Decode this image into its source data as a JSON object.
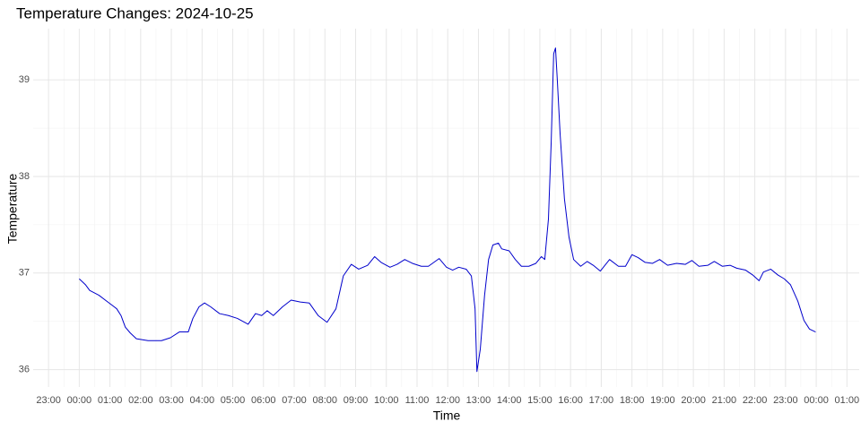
{
  "chart_data": {
    "type": "line",
    "title": "Temperature Changes: 2024-10-25",
    "x_label": "Time",
    "y_label": "Temperature",
    "x": [
      0.0,
      0.2,
      0.34,
      0.64,
      0.93,
      1.22,
      1.36,
      1.5,
      1.66,
      1.86,
      2.24,
      2.68,
      2.97,
      3.26,
      3.55,
      3.7,
      3.9,
      4.08,
      4.28,
      4.57,
      4.86,
      5.15,
      5.5,
      5.74,
      5.94,
      6.12,
      6.32,
      6.62,
      6.9,
      7.2,
      7.49,
      7.78,
      8.07,
      8.36,
      8.6,
      8.86,
      9.1,
      9.39,
      9.62,
      9.83,
      10.12,
      10.35,
      10.6,
      10.85,
      11.14,
      11.37,
      11.72,
      11.96,
      12.16,
      12.36,
      12.6,
      12.77,
      12.89,
      12.95,
      13.06,
      13.2,
      13.33,
      13.47,
      13.65,
      13.76,
      14.0,
      14.2,
      14.4,
      14.64,
      14.87,
      15.05,
      15.16,
      15.28,
      15.37,
      15.45,
      15.51,
      15.57,
      15.66,
      15.8,
      15.95,
      16.1,
      16.33,
      16.54,
      16.74,
      16.97,
      17.27,
      17.56,
      17.79,
      18.0,
      18.2,
      18.43,
      18.67,
      18.9,
      19.16,
      19.45,
      19.74,
      19.95,
      20.18,
      20.47,
      20.68,
      20.94,
      21.2,
      21.41,
      21.7,
      21.93,
      22.14,
      22.28,
      22.52,
      22.75,
      22.96,
      23.16,
      23.4,
      23.6,
      23.78,
      23.98
    ],
    "series": [
      {
        "name": "Temperature",
        "color": "#0000cc",
        "values": [
          36.94,
          36.88,
          36.82,
          36.77,
          36.7,
          36.63,
          36.56,
          36.44,
          36.38,
          36.32,
          36.3,
          36.3,
          36.33,
          36.39,
          36.39,
          36.53,
          36.65,
          36.69,
          36.65,
          36.58,
          36.56,
          36.53,
          36.47,
          36.58,
          36.56,
          36.61,
          36.56,
          36.65,
          36.72,
          36.7,
          36.69,
          36.56,
          36.49,
          36.63,
          36.97,
          37.09,
          37.04,
          37.08,
          37.17,
          37.11,
          37.06,
          37.09,
          37.14,
          37.1,
          37.07,
          37.07,
          37.15,
          37.06,
          37.03,
          37.06,
          37.04,
          36.97,
          36.63,
          35.98,
          36.21,
          36.77,
          37.14,
          37.29,
          37.31,
          37.25,
          37.23,
          37.14,
          37.07,
          37.07,
          37.1,
          37.17,
          37.14,
          37.56,
          38.36,
          39.27,
          39.33,
          38.99,
          38.44,
          37.77,
          37.37,
          37.14,
          37.07,
          37.12,
          37.08,
          37.02,
          37.14,
          37.07,
          37.07,
          37.19,
          37.16,
          37.11,
          37.1,
          37.14,
          37.08,
          37.1,
          37.09,
          37.13,
          37.07,
          37.08,
          37.12,
          37.07,
          37.08,
          37.05,
          37.03,
          36.98,
          36.92,
          37.01,
          37.04,
          36.98,
          36.94,
          36.88,
          36.71,
          36.51,
          36.42,
          36.39
        ]
      }
    ],
    "xlim": [
      -1.5,
      25.4
    ],
    "xticks": [
      {
        "value": -1,
        "label": "23:00"
      },
      {
        "value": 0,
        "label": "00:00"
      },
      {
        "value": 1,
        "label": "01:00"
      },
      {
        "value": 2,
        "label": "02:00"
      },
      {
        "value": 3,
        "label": "03:00"
      },
      {
        "value": 4,
        "label": "04:00"
      },
      {
        "value": 5,
        "label": "05:00"
      },
      {
        "value": 6,
        "label": "06:00"
      },
      {
        "value": 7,
        "label": "07:00"
      },
      {
        "value": 8,
        "label": "08:00"
      },
      {
        "value": 9,
        "label": "09:00"
      },
      {
        "value": 10,
        "label": "10:00"
      },
      {
        "value": 11,
        "label": "11:00"
      },
      {
        "value": 12,
        "label": "12:00"
      },
      {
        "value": 13,
        "label": "13:00"
      },
      {
        "value": 14,
        "label": "14:00"
      },
      {
        "value": 15,
        "label": "15:00"
      },
      {
        "value": 16,
        "label": "16:00"
      },
      {
        "value": 17,
        "label": "17:00"
      },
      {
        "value": 18,
        "label": "18:00"
      },
      {
        "value": 19,
        "label": "19:00"
      },
      {
        "value": 20,
        "label": "20:00"
      },
      {
        "value": 21,
        "label": "21:00"
      },
      {
        "value": 22,
        "label": "22:00"
      },
      {
        "value": 23,
        "label": "23:00"
      },
      {
        "value": 24,
        "label": "00:00"
      },
      {
        "value": 25,
        "label": "01:00"
      }
    ],
    "ylim": [
      35.82,
      39.53
    ],
    "yticks": [
      36,
      37,
      38,
      39
    ],
    "grid": true
  }
}
